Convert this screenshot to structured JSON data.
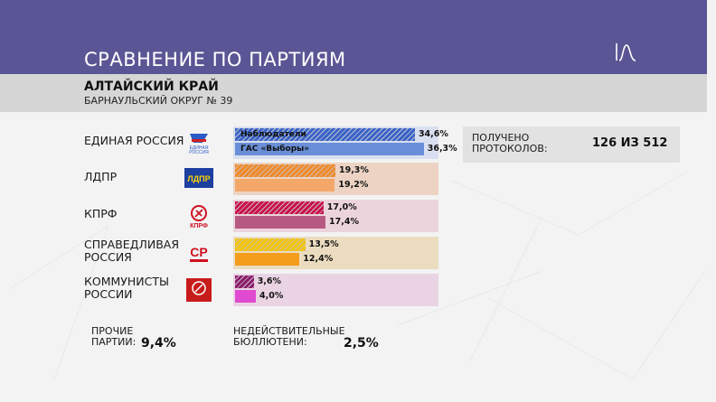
{
  "header": {
    "title": "СРАВНЕНИЕ ПО ПАРТИЯМ",
    "region": "АЛТАЙСКИЙ КРАЙ",
    "district": "БАРНАУЛЬСКИЙ ОКРУГ № 39"
  },
  "colors": {
    "top_band": "#5a5594",
    "region_band": "#d6d6d6"
  },
  "chart_data": {
    "type": "bar",
    "orientation": "horizontal",
    "categories": [
      "ЕДИНАЯ РОССИЯ",
      "ЛДПР",
      "КПРФ",
      "СПРАВЕДЛИВАЯ РОССИЯ",
      "КОММУНИСТЫ РОССИИ"
    ],
    "series": [
      {
        "name": "Наблюдатели",
        "values": [
          34.6,
          19.3,
          17.0,
          13.5,
          3.6
        ]
      },
      {
        "name": "ГАС «Выборы»",
        "values": [
          36.3,
          19.2,
          17.4,
          12.4,
          4.0
        ]
      }
    ],
    "value_labels": [
      [
        "34,6%",
        "36,3%"
      ],
      [
        "19,3%",
        "19,2%"
      ],
      [
        "17,0%",
        "17,4%"
      ],
      [
        "13,5%",
        "12,4%"
      ],
      [
        "3,6%",
        "4,0%"
      ]
    ],
    "xlim": [
      0,
      40
    ]
  },
  "parties": [
    {
      "name_lines": [
        "ЕДИНАЯ РОССИЯ"
      ],
      "logo_text": "ЕДИНАЯ РОССИЯ",
      "logo_icon": "bear-flag-icon",
      "color_a": "#3a63c7",
      "color_b": "#6a8fd8",
      "bg": "#d9dff0"
    },
    {
      "name_lines": [
        "ЛДПР"
      ],
      "logo_text": "ЛДПР",
      "logo_icon": "ldpr-logo",
      "color_a": "#f08a2a",
      "color_b": "#f3a86a",
      "bg": "#ecd3c3"
    },
    {
      "name_lines": [
        "КПРФ"
      ],
      "logo_text": "КПРФ",
      "logo_icon": "hammer-sickle-icon",
      "color_a": "#c8104a",
      "color_b": "#b65a82",
      "bg": "#ecd4dc"
    },
    {
      "name_lines": [
        "СПРАВЕДЛИВАЯ",
        "РОССИЯ"
      ],
      "logo_text": "СР",
      "logo_icon": "sr-logo",
      "color_a": "#f4c400",
      "color_b": "#f49c1c",
      "bg": "#ebdcc0"
    },
    {
      "name_lines": [
        "КОММУНИСТЫ",
        "РОССИИ"
      ],
      "logo_text": "",
      "logo_icon": "kr-logo",
      "color_a": "#8a1d6a",
      "color_b": "#e04ad0",
      "bg": "#ead4e4"
    }
  ],
  "protocols": {
    "label_line1": "ПОЛУЧЕНО",
    "label_line2": "ПРОТОКОЛОВ:",
    "value": "126 ИЗ 512"
  },
  "footer": {
    "other_line1": "ПРОЧИЕ",
    "other_line2": "ПАРТИИ:",
    "other_value": "9,4%",
    "invalid_line1": "НЕДЕЙСТВИТЕЛЬНЫЕ",
    "invalid_line2": "БЮЛЛЮТЕНИ:",
    "invalid_value": "2,5%"
  }
}
